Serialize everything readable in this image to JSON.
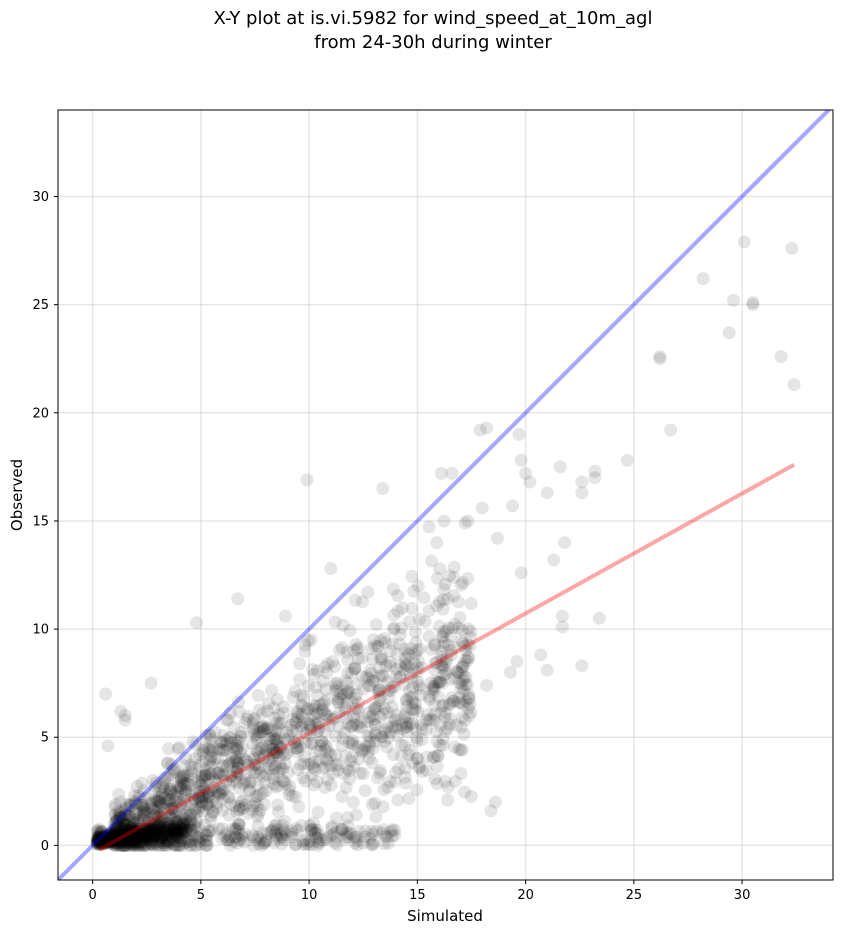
{
  "chart_data": {
    "type": "scatter",
    "title_line1": "X-Y plot at is.vi.5982 for wind_speed_at_10m_agl",
    "title_line2": "from 24-30h during winter",
    "xlabel": "Simulated",
    "ylabel": "Observed",
    "xlim": [
      -1.6,
      34.2
    ],
    "ylim": [
      -1.6,
      34.0
    ],
    "xticks": [
      0,
      5,
      10,
      15,
      20,
      25,
      30
    ],
    "yticks": [
      0,
      5,
      10,
      15,
      20,
      25,
      30
    ],
    "grid": true,
    "identity_line": {
      "color": "#0000ff",
      "alpha": 0.35
    },
    "regression_line": {
      "x": [
        0.3,
        32.4
      ],
      "y": [
        -0.2,
        17.6
      ],
      "color": "#ff0000",
      "alpha": 0.35
    },
    "point_color": "#000000",
    "point_alpha": 0.1,
    "sparse_points": [
      [
        30.1,
        27.9
      ],
      [
        32.3,
        27.6
      ],
      [
        28.2,
        26.2
      ],
      [
        29.6,
        25.2
      ],
      [
        30.5,
        25.1
      ],
      [
        30.5,
        25.0
      ],
      [
        29.4,
        23.7
      ],
      [
        26.2,
        22.6
      ],
      [
        26.2,
        22.5
      ],
      [
        31.8,
        22.6
      ],
      [
        32.4,
        21.3
      ],
      [
        26.7,
        19.2
      ],
      [
        18.2,
        19.3
      ],
      [
        17.9,
        19.2
      ],
      [
        19.7,
        19.0
      ],
      [
        24.7,
        17.8
      ],
      [
        23.2,
        17.3
      ],
      [
        21.6,
        17.5
      ],
      [
        16.1,
        17.2
      ],
      [
        16.6,
        17.2
      ],
      [
        19.8,
        17.8
      ],
      [
        20.0,
        17.2
      ],
      [
        20.2,
        16.8
      ],
      [
        22.6,
        16.8
      ],
      [
        23.2,
        17.0
      ],
      [
        21.0,
        16.3
      ],
      [
        22.6,
        16.3
      ],
      [
        9.9,
        16.9
      ],
      [
        13.4,
        16.5
      ],
      [
        19.4,
        15.7
      ],
      [
        18.0,
        15.6
      ],
      [
        17.2,
        14.9
      ],
      [
        18.7,
        14.2
      ],
      [
        21.8,
        14.0
      ],
      [
        21.3,
        13.2
      ],
      [
        19.8,
        12.6
      ],
      [
        20.7,
        8.8
      ],
      [
        21.0,
        8.1
      ],
      [
        22.6,
        8.3
      ],
      [
        23.4,
        10.5
      ],
      [
        21.7,
        10.6
      ],
      [
        21.7,
        10.1
      ],
      [
        19.6,
        8.5
      ],
      [
        19.3,
        8.0
      ],
      [
        18.4,
        1.6
      ],
      [
        18.6,
        2.0
      ],
      [
        11.0,
        12.8
      ],
      [
        6.7,
        11.4
      ],
      [
        4.8,
        10.3
      ],
      [
        8.9,
        10.6
      ],
      [
        17.4,
        6.0
      ],
      [
        18.2,
        7.4
      ],
      [
        0.6,
        7.0
      ],
      [
        0.7,
        4.6
      ],
      [
        1.3,
        6.2
      ],
      [
        1.5,
        5.8
      ],
      [
        1.5,
        6.0
      ],
      [
        2.7,
        7.5
      ],
      [
        16.4,
        2.1
      ],
      [
        17.0,
        4.4
      ]
    ]
  }
}
